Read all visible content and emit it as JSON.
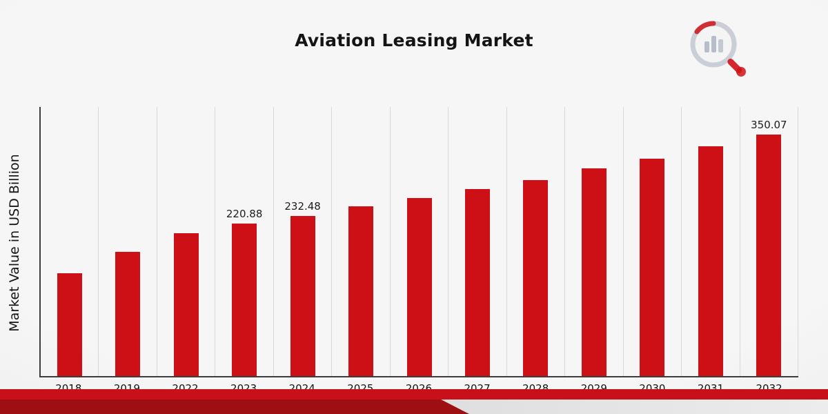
{
  "chart_data": {
    "type": "bar",
    "title": "Aviation Leasing Market",
    "xlabel": "",
    "ylabel": "Market Value in USD Billion",
    "categories": [
      "2018",
      "2019",
      "2022",
      "2023",
      "2024",
      "2025",
      "2026",
      "2027",
      "2028",
      "2029",
      "2030",
      "2031",
      "2032"
    ],
    "values": [
      149,
      180,
      207,
      220.88,
      232.48,
      246,
      258,
      271,
      284,
      301,
      315,
      333,
      350.07
    ],
    "bar_labels": [
      "",
      "",
      "",
      "220.88",
      "232.48",
      "",
      "",
      "",
      "",
      "",
      "",
      "",
      "350.07"
    ],
    "ylim": [
      0,
      390
    ],
    "grid": "vertical-only",
    "legend": "none",
    "bar_color": "#cc1016"
  },
  "theme": {
    "accent_red": "#c8101a",
    "dark_red": "#9e0f14",
    "grid_line": "#d8d8d8",
    "axis_line": "#3c3c3c",
    "text": "#141414",
    "background": "#efefef"
  },
  "branding": {
    "logo_icon": "bar-chart-magnifier"
  }
}
